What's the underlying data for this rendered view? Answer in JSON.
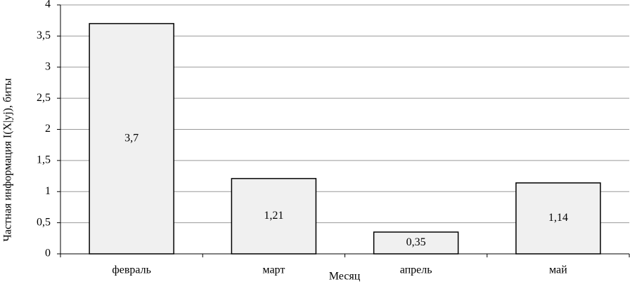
{
  "chart_data": {
    "type": "bar",
    "y_label": "Частная информация I(X|yj), биты",
    "x_label": "Месяц",
    "categories": [
      "февраль",
      "март",
      "апрель",
      "май"
    ],
    "values": [
      3.7,
      1.21,
      0.35,
      1.14
    ],
    "value_labels": [
      "3,7",
      "1,21",
      "0,35",
      "1,14"
    ],
    "color": "#f0f0f0",
    "ylim": [
      0,
      4
    ],
    "yticks": [
      0,
      {
        "value": 0.5,
        "label": "0,5"
      },
      1,
      {
        "value": 1.5,
        "label": "1,5"
      },
      2,
      {
        "value": 2.5,
        "label": "2,5"
      },
      3,
      {
        "value": 3.5,
        "label": "3,5"
      },
      4
    ],
    "grid": true
  }
}
